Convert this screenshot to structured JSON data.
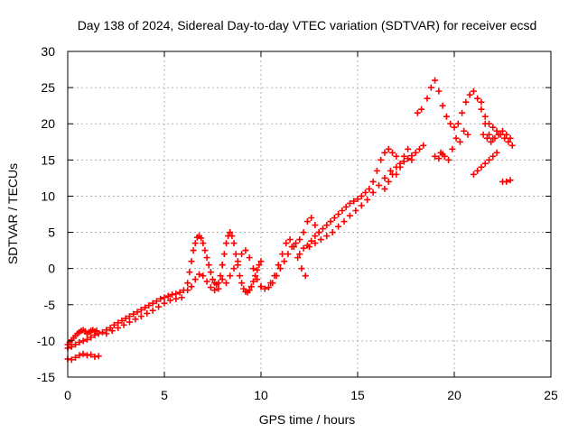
{
  "chart_data": {
    "type": "scatter",
    "title": "Day 138 of 2024, Sidereal Day-to-day VTEC variation (SDTVAR) for receiver ecsd",
    "xlabel": "GPS time / hours",
    "ylabel": "SDTVAR / TECUs",
    "xlim": [
      0,
      25
    ],
    "ylim": [
      -15,
      30
    ],
    "xticks": [
      0,
      5,
      10,
      15,
      20,
      25
    ],
    "yticks": [
      -15,
      -10,
      -5,
      0,
      5,
      10,
      15,
      20,
      25,
      30
    ],
    "grid": true,
    "marker": "+",
    "color": "#ff0000",
    "series": [
      {
        "name": "SDTVAR",
        "x": [
          0.0,
          0.1,
          0.2,
          0.3,
          0.4,
          0.5,
          0.6,
          0.7,
          0.8,
          0.9,
          1.0,
          1.1,
          1.2,
          1.3,
          1.4,
          1.5,
          0.0,
          0.2,
          0.4,
          0.6,
          0.8,
          1.0,
          1.2,
          1.4,
          1.6,
          0.0,
          0.2,
          0.4,
          0.6,
          0.8,
          1.0,
          1.2,
          1.4,
          1.6,
          1.8,
          2.0,
          2.2,
          2.4,
          2.6,
          2.8,
          3.0,
          3.2,
          3.4,
          3.6,
          3.8,
          4.0,
          4.2,
          4.4,
          4.6,
          4.8,
          5.0,
          5.2,
          5.4,
          5.6,
          5.8,
          6.0,
          2.0,
          2.3,
          2.6,
          2.9,
          3.2,
          3.5,
          3.8,
          4.1,
          4.4,
          4.7,
          5.0,
          5.3,
          5.6,
          5.9,
          6.2,
          6.3,
          6.4,
          6.5,
          6.6,
          6.7,
          6.8,
          6.9,
          7.0,
          7.1,
          7.2,
          7.3,
          7.4,
          7.5,
          7.6,
          7.7,
          7.8,
          7.9,
          8.0,
          6.2,
          6.4,
          6.6,
          6.8,
          7.0,
          7.2,
          7.4,
          7.6,
          7.8,
          8.0,
          8.0,
          8.1,
          8.2,
          8.3,
          8.4,
          8.5,
          8.6,
          8.7,
          8.8,
          8.9,
          9.0,
          9.1,
          9.2,
          9.3,
          9.4,
          9.5,
          9.6,
          9.7,
          9.8,
          9.9,
          10.0,
          8.2,
          8.4,
          8.6,
          8.8,
          9.0,
          9.2,
          9.4,
          9.6,
          9.8,
          10.0,
          10.0,
          10.2,
          10.4,
          10.6,
          10.8,
          11.0,
          11.2,
          11.4,
          11.6,
          11.8,
          12.0,
          12.2,
          12.4,
          12.6,
          12.8,
          13.0,
          10.5,
          10.7,
          10.9,
          11.1,
          11.3,
          11.5,
          11.7,
          11.9,
          12.1,
          12.3,
          12.0,
          12.2,
          12.4,
          12.6,
          12.8,
          13.0,
          13.2,
          13.4,
          13.6,
          13.8,
          14.0,
          14.2,
          14.4,
          14.6,
          14.8,
          15.0,
          15.2,
          15.4,
          15.6,
          15.8,
          16.0,
          16.2,
          16.4,
          16.6,
          16.8,
          17.0,
          12.5,
          12.8,
          13.1,
          13.4,
          13.7,
          14.0,
          14.3,
          14.6,
          14.9,
          15.2,
          15.5,
          15.8,
          16.1,
          16.4,
          16.7,
          16.4,
          16.6,
          16.8,
          17.0,
          17.2,
          17.4,
          17.6,
          17.8,
          18.0,
          18.2,
          18.4,
          17.0,
          17.2,
          17.4,
          17.6,
          17.8,
          18.1,
          18.3,
          18.6,
          18.8,
          19.0,
          19.2,
          19.4,
          19.6,
          19.8,
          20.0,
          20.2,
          20.4,
          20.6,
          20.8,
          21.0,
          21.2,
          21.4,
          21.6,
          21.8,
          22.0,
          19.3,
          19.5,
          19.7,
          19.9,
          20.1,
          20.3,
          20.5,
          20.7,
          19.0,
          19.2,
          19.4,
          21.4,
          21.6,
          21.8,
          22.0,
          22.2,
          22.4,
          22.6,
          22.8,
          23.0,
          21.5,
          21.7,
          21.9,
          22.1,
          22.3,
          22.5,
          22.7,
          22.9,
          21.0,
          21.2,
          21.4,
          21.6,
          21.8,
          22.0,
          22.2,
          22.5,
          22.7,
          22.9
        ],
        "y": [
          -10.5,
          -10.2,
          -9.9,
          -9.6,
          -9.3,
          -9.0,
          -8.8,
          -8.6,
          -8.5,
          -8.7,
          -9.0,
          -8.8,
          -8.6,
          -8.5,
          -8.7,
          -8.6,
          -12.5,
          -12.6,
          -12.3,
          -12.0,
          -11.8,
          -12.0,
          -11.9,
          -12.2,
          -12.1,
          -11.0,
          -10.8,
          -10.5,
          -10.2,
          -10.0,
          -9.8,
          -9.5,
          -9.2,
          -9.0,
          -8.8,
          -8.5,
          -8.2,
          -7.8,
          -7.5,
          -7.2,
          -6.9,
          -6.6,
          -6.3,
          -6.0,
          -5.7,
          -5.4,
          -5.1,
          -4.8,
          -4.5,
          -4.2,
          -4.0,
          -3.8,
          -3.6,
          -3.5,
          -3.3,
          -3.0,
          -9.0,
          -8.6,
          -8.2,
          -7.8,
          -7.4,
          -7.0,
          -6.6,
          -6.2,
          -5.8,
          -5.3,
          -4.8,
          -4.4,
          -4.2,
          -4.0,
          -2.0,
          -0.5,
          1.0,
          2.5,
          3.5,
          4.3,
          4.5,
          4.2,
          3.5,
          2.5,
          1.5,
          0.5,
          -0.5,
          -1.5,
          -2.0,
          -2.2,
          -2.0,
          -1.0,
          0.5,
          -3.0,
          -2.5,
          -1.5,
          -0.8,
          -1.0,
          -1.8,
          -2.6,
          -3.0,
          -2.8,
          -1.5,
          0.5,
          2.0,
          3.5,
          4.5,
          5.0,
          4.5,
          3.5,
          2.0,
          0.5,
          -1.0,
          -2.0,
          -2.8,
          -3.2,
          -3.3,
          -3.0,
          -2.5,
          -1.8,
          -1.0,
          -0.2,
          0.5,
          1.0,
          -2.0,
          -1.0,
          0.0,
          1.0,
          2.0,
          2.5,
          1.5,
          0.0,
          -1.5,
          -2.5,
          -2.5,
          -2.8,
          -2.6,
          -2.0,
          -1.0,
          0.0,
          1.0,
          2.0,
          3.0,
          3.5,
          4.0,
          5.0,
          6.5,
          7.0,
          6.0,
          5.0,
          -2.0,
          -1.0,
          0.5,
          2.0,
          3.5,
          4.0,
          3.0,
          1.5,
          0.0,
          -1.0,
          2.0,
          2.8,
          3.2,
          3.8,
          4.5,
          5.0,
          5.5,
          6.0,
          6.5,
          7.0,
          7.5,
          8.0,
          8.5,
          9.0,
          9.3,
          9.6,
          10.0,
          10.5,
          11.0,
          12.0,
          13.5,
          15.0,
          16.0,
          16.5,
          16.0,
          15.5,
          3.0,
          3.5,
          4.0,
          4.5,
          5.0,
          5.8,
          6.5,
          7.3,
          8.0,
          8.7,
          9.5,
          10.5,
          11.5,
          12.5,
          13.5,
          11.0,
          12.0,
          13.0,
          14.0,
          14.5,
          14.8,
          15.2,
          15.6,
          16.0,
          16.5,
          17.0,
          13.0,
          14.0,
          15.5,
          16.5,
          15.0,
          21.5,
          22.0,
          23.5,
          25.0,
          26.0,
          24.5,
          22.5,
          21.0,
          20.0,
          19.5,
          20.0,
          21.5,
          23.0,
          24.0,
          24.5,
          23.5,
          22.0,
          20.0,
          18.5,
          18.0,
          16.0,
          15.5,
          15.0,
          16.5,
          18.0,
          17.5,
          19.0,
          18.5,
          15.5,
          15.2,
          15.8,
          23.0,
          21.0,
          20.0,
          19.5,
          19.0,
          18.5,
          18.0,
          17.5,
          17.0,
          18.5,
          18.0,
          17.5,
          18.0,
          18.5,
          19.0,
          18.5,
          18.0,
          13.0,
          13.5,
          14.0,
          14.5,
          15.0,
          15.5,
          16.0,
          12.0,
          12.0,
          12.2
        ]
      }
    ]
  }
}
